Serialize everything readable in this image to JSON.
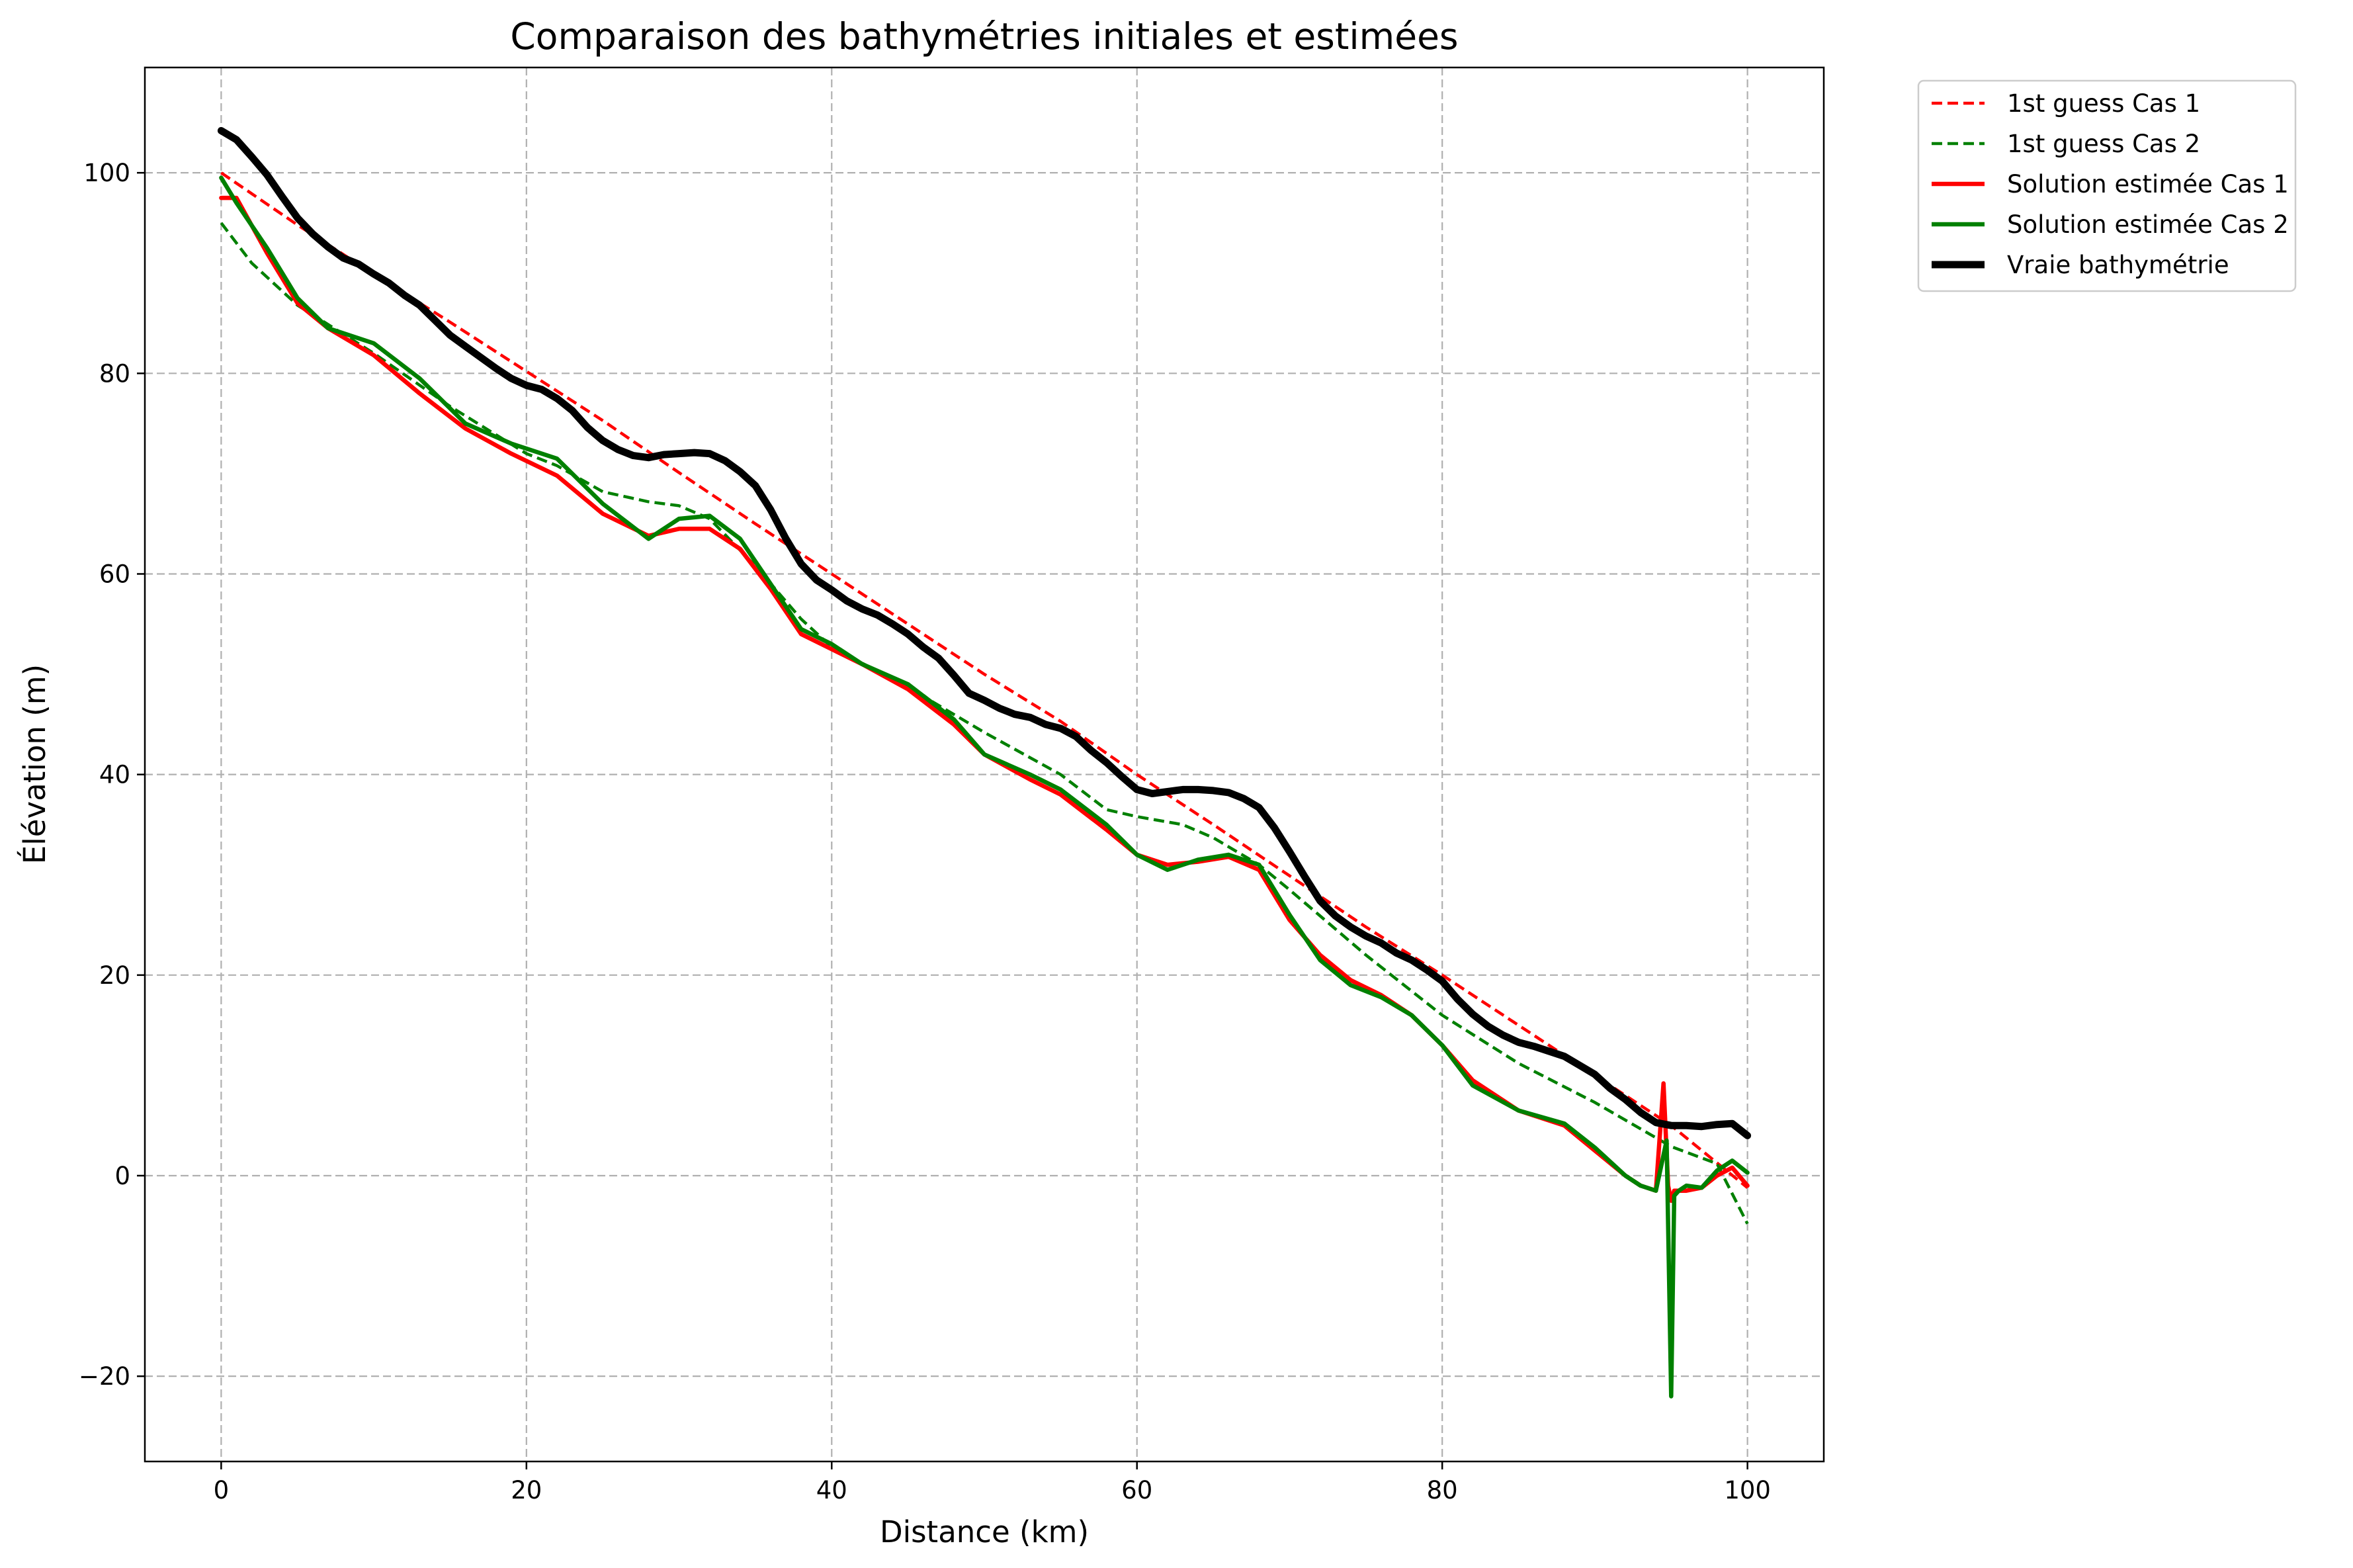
{
  "chart_data": {
    "type": "line",
    "title": "Comparaison des bathymétries initiales et estimées",
    "xlabel": "Distance (km)",
    "ylabel": "Élévation (m)",
    "xlim": [
      -5,
      105
    ],
    "ylim": [
      -28.5,
      110.5
    ],
    "xticks": [
      0,
      20,
      40,
      60,
      80,
      100
    ],
    "yticks": [
      -20,
      0,
      20,
      40,
      60,
      80,
      100
    ],
    "xtick_labels": [
      "0",
      "20",
      "40",
      "60",
      "80",
      "100"
    ],
    "ytick_labels": [
      "−20",
      "0",
      "20",
      "40",
      "60",
      "80",
      "100"
    ],
    "grid": true,
    "legend_position": "outside-top-right",
    "series": [
      {
        "name": "1st guess Cas 1",
        "color": "#ff0000",
        "style": "dashed",
        "x": [
          0,
          5,
          10,
          15,
          20,
          25,
          30,
          35,
          40,
          45,
          50,
          55,
          60,
          65,
          70,
          75,
          80,
          85,
          90,
          95,
          100
        ],
        "y": [
          100,
          94.8,
          89.9,
          85.1,
          80.2,
          75.3,
          70.1,
          65.0,
          60.0,
          55.0,
          50.0,
          45.3,
          40.0,
          35.0,
          29.9,
          24.8,
          20.0,
          15.0,
          10.0,
          5.0,
          -1.2
        ]
      },
      {
        "name": "1st guess Cas 2",
        "color": "#008000",
        "style": "dashed",
        "x": [
          0,
          2,
          5,
          10,
          15,
          20,
          22,
          25,
          28,
          30,
          32,
          35,
          38,
          40,
          45,
          50,
          55,
          58,
          60,
          63,
          65,
          68,
          70,
          75,
          80,
          85,
          90,
          95,
          98,
          100
        ],
        "y": [
          95.0,
          91.0,
          86.8,
          82.0,
          76.7,
          72.0,
          70.8,
          68.2,
          67.2,
          66.8,
          65.5,
          60.8,
          55.5,
          52.7,
          48.7,
          44.2,
          40.0,
          36.5,
          35.8,
          35.0,
          33.7,
          31.0,
          28.5,
          22.0,
          16.0,
          11.2,
          7.3,
          2.9,
          1.2,
          -4.8
        ]
      },
      {
        "name": "Solution estimée Cas 1",
        "color": "#ff0000",
        "style": "solid",
        "x": [
          0,
          1,
          3,
          5,
          7,
          10,
          13,
          16,
          19,
          22,
          25,
          28,
          30,
          32,
          34,
          36,
          38,
          40,
          42,
          45,
          48,
          50,
          53,
          55,
          58,
          60,
          62,
          64,
          66,
          68,
          70,
          72,
          74,
          76,
          78,
          80,
          82,
          85,
          88,
          90,
          92,
          93,
          94,
          94.5,
          94.8,
          95.0,
          95.2,
          96,
          97,
          98,
          99,
          100
        ],
        "y": [
          97.5,
          97.5,
          92.0,
          87.0,
          84.5,
          81.8,
          78.0,
          74.5,
          72.0,
          69.8,
          66.0,
          63.8,
          64.5,
          64.5,
          62.5,
          58.5,
          54.0,
          52.5,
          51.0,
          48.5,
          45.0,
          42.0,
          39.5,
          38.0,
          34.5,
          32.0,
          31.0,
          31.3,
          31.8,
          30.5,
          25.5,
          22.0,
          19.5,
          18.0,
          16.0,
          13.0,
          9.5,
          6.5,
          5.0,
          2.5,
          0.0,
          -1.0,
          -1.5,
          9.2,
          -1.0,
          -2.5,
          -1.5,
          -1.5,
          -1.2,
          0.0,
          0.8,
          -1.0
        ]
      },
      {
        "name": "Solution estimée Cas 2",
        "color": "#008000",
        "style": "solid",
        "x": [
          0,
          1,
          3,
          5,
          7,
          10,
          13,
          16,
          19,
          22,
          25,
          28,
          30,
          32,
          34,
          36,
          38,
          40,
          42,
          45,
          48,
          50,
          53,
          55,
          58,
          60,
          62,
          64,
          66,
          68,
          70,
          72,
          74,
          76,
          78,
          80,
          82,
          85,
          88,
          90,
          92,
          93,
          94,
          94.7,
          95.0,
          95.2,
          95.5,
          96,
          97,
          98,
          99,
          100
        ],
        "y": [
          99.5,
          97.0,
          92.5,
          87.5,
          84.5,
          83.0,
          79.5,
          75.0,
          73.0,
          71.5,
          67.0,
          63.5,
          65.5,
          65.8,
          63.5,
          59.0,
          54.5,
          53.0,
          51.0,
          49.0,
          45.5,
          42.0,
          40.0,
          38.5,
          35.0,
          32.0,
          30.5,
          31.5,
          32.0,
          31.0,
          26.0,
          21.5,
          19.0,
          17.8,
          16.0,
          13.0,
          9.0,
          6.5,
          5.2,
          2.8,
          0.0,
          -1.0,
          -1.5,
          3.5,
          -22.0,
          -2.0,
          -1.5,
          -1.0,
          -1.2,
          0.5,
          1.5,
          0.3
        ]
      },
      {
        "name": "Vraie bathymétrie",
        "color": "#000000",
        "style": "solid",
        "x": [
          0,
          1,
          2,
          3,
          4,
          5,
          6,
          7,
          8,
          9,
          10,
          11,
          12,
          13,
          14,
          15,
          16,
          17,
          18,
          19,
          20,
          21,
          22,
          23,
          24,
          25,
          26,
          27,
          28,
          29,
          30,
          31,
          32,
          33,
          34,
          35,
          36,
          37,
          38,
          39,
          40,
          41,
          42,
          43,
          44,
          45,
          46,
          47,
          48,
          49,
          50,
          51,
          52,
          53,
          54,
          55,
          56,
          57,
          58,
          59,
          60,
          61,
          62,
          63,
          64,
          65,
          66,
          67,
          68,
          69,
          70,
          71,
          72,
          73,
          74,
          75,
          76,
          77,
          78,
          79,
          80,
          81,
          82,
          83,
          84,
          85,
          86,
          87,
          88,
          89,
          90,
          91,
          92,
          93,
          94,
          95,
          96,
          97,
          98,
          99,
          100
        ],
        "y": [
          104.2,
          103.3,
          101.6,
          99.8,
          97.6,
          95.5,
          93.9,
          92.6,
          91.5,
          90.9,
          89.9,
          89.0,
          87.8,
          86.8,
          85.3,
          83.8,
          82.7,
          81.6,
          80.5,
          79.5,
          78.8,
          78.4,
          77.5,
          76.3,
          74.6,
          73.3,
          72.4,
          71.8,
          71.6,
          71.9,
          72.0,
          72.1,
          72.0,
          71.3,
          70.2,
          68.8,
          66.4,
          63.5,
          61.0,
          59.4,
          58.4,
          57.3,
          56.5,
          55.9,
          55.0,
          54.0,
          52.7,
          51.6,
          49.9,
          48.1,
          47.4,
          46.6,
          46.0,
          45.7,
          45.0,
          44.6,
          43.8,
          42.4,
          41.2,
          39.8,
          38.5,
          38.1,
          38.3,
          38.5,
          38.5,
          38.4,
          38.2,
          37.6,
          36.7,
          34.7,
          32.3,
          29.8,
          27.4,
          25.9,
          24.8,
          23.9,
          23.2,
          22.2,
          21.5,
          20.5,
          19.4,
          17.6,
          16.1,
          14.9,
          14.0,
          13.3,
          12.9,
          12.4,
          11.9,
          11.0,
          10.1,
          8.7,
          7.6,
          6.3,
          5.3,
          5.0,
          5.0,
          4.9,
          5.1,
          5.2,
          4.0
        ]
      }
    ]
  }
}
